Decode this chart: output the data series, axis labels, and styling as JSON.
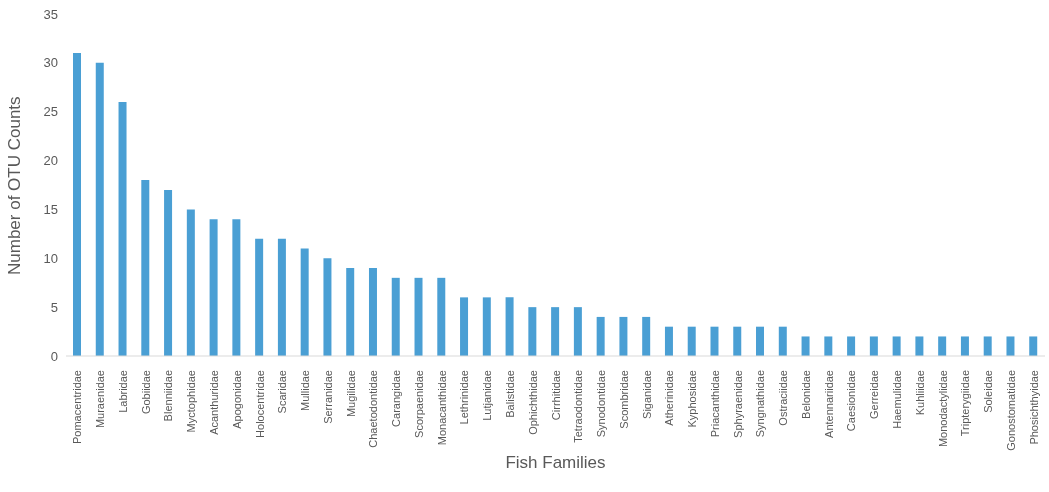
{
  "chart_data": {
    "type": "bar",
    "xlabel": "Fish Families",
    "ylabel": "Number of OTU Counts",
    "categories": [
      "Pomacentridae",
      "Muraenidae",
      "Labridae",
      "Gobiidae",
      "Blenniidae",
      "Myctophidae",
      "Acanthuridae",
      "Apogonidae",
      "Holocentridae",
      "Scaridae",
      "Mullidae",
      "Serranidae",
      "Mugilidae",
      "Chaetodontidae",
      "Carangidae",
      "Scorpaenidae",
      "Monacanthidae",
      "Lethrinidae",
      "Lutjanidae",
      "Balistidae",
      "Ophichthidae",
      "Cirrhitidae",
      "Tetraodontidae",
      "Synodontidae",
      "Scombridae",
      "Siganidae",
      "Atherinidae",
      "Kyphosidae",
      "Priacanthidae",
      "Sphyraenidae",
      "Syngnathidae",
      "Ostraciidae",
      "Belonidae",
      "Antennariidae",
      "Caesionidae",
      "Gerreidae",
      "Haemulidae",
      "Kuhliidae",
      "Monodactylidae",
      "Tripterygiidae",
      "Soleidae",
      "Gonostomatidae",
      "Phosichthyidae"
    ],
    "values": [
      31,
      30,
      26,
      18,
      17,
      15,
      14,
      14,
      12,
      12,
      11,
      10,
      9,
      9,
      8,
      8,
      8,
      6,
      6,
      6,
      5,
      5,
      5,
      4,
      4,
      4,
      3,
      3,
      3,
      3,
      3,
      3,
      2,
      2,
      2,
      2,
      2,
      2,
      2,
      2,
      2,
      2,
      2
    ],
    "color": "#4a9fd4",
    "ylim": [
      0,
      35
    ],
    "yticks": [
      0,
      5,
      10,
      15,
      20,
      25,
      30,
      35
    ],
    "grid": false
  }
}
